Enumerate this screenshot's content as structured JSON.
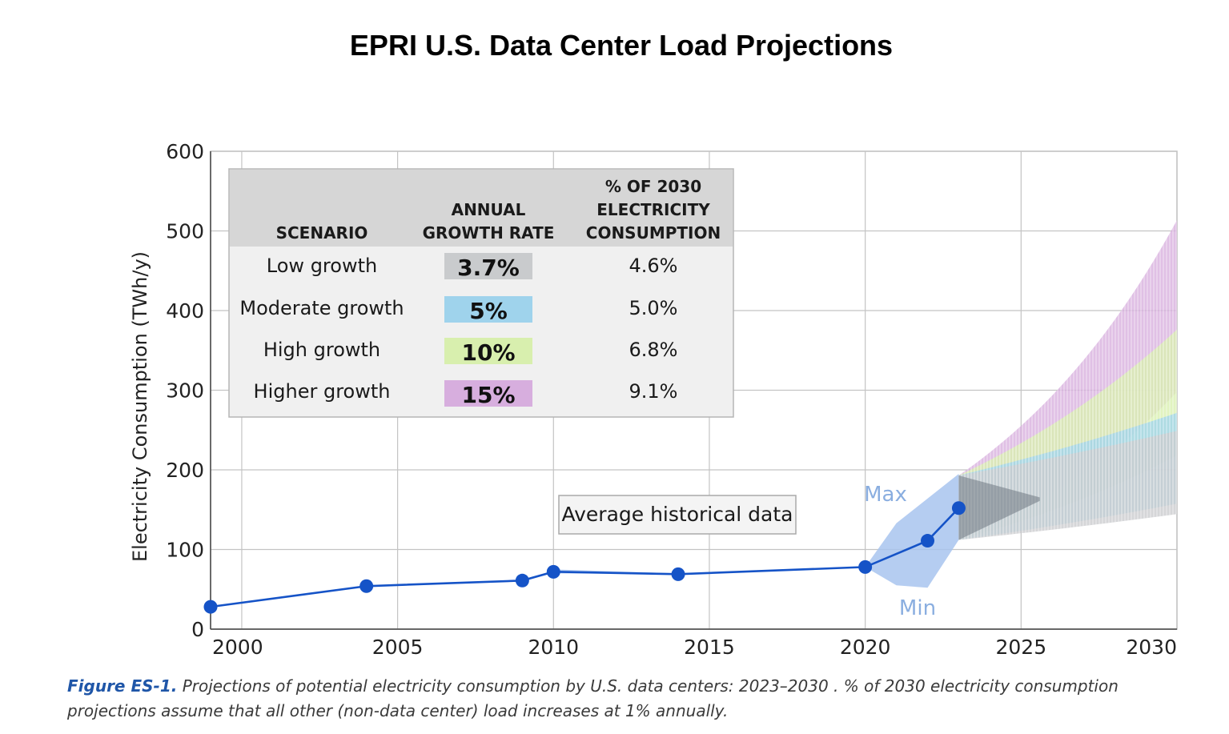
{
  "title": "EPRI U.S. Data Center Load Projections",
  "caption": {
    "figure_label": "Figure ES-1.",
    "text": " Projections of potential electricity consumption by U.S. data centers: 2023–2030 . % of 2030 electricity consumption projections assume that all other (non-data center) load increases at 1% annually."
  },
  "chart_data": {
    "type": "line",
    "title": "EPRI U.S. Data Center Load Projections",
    "xlabel": "",
    "ylabel": "Electricity Consumption (TWh/y)",
    "xlim": [
      1999,
      2030
    ],
    "ylim": [
      0,
      600
    ],
    "x_ticks": [
      "2000",
      "2005",
      "2010",
      "2015",
      "2020",
      "2025",
      "2030"
    ],
    "x_tick_values": [
      2000,
      2005,
      2010,
      2015,
      2020,
      2025,
      2030
    ],
    "y_ticks": [
      "0",
      "100",
      "200",
      "300",
      "400",
      "500",
      "600"
    ],
    "y_tick_values": [
      0,
      100,
      200,
      300,
      400,
      500,
      600
    ],
    "grid": true,
    "historical": {
      "name": "Average historical data",
      "color": "#1553c7",
      "points": [
        {
          "x": 1999,
          "y": 28
        },
        {
          "x": 2004,
          "y": 54
        },
        {
          "x": 2009,
          "y": 61
        },
        {
          "x": 2010,
          "y": 72
        },
        {
          "x": 2014,
          "y": 69
        },
        {
          "x": 2020,
          "y": 78
        },
        {
          "x": 2022,
          "y": 111
        },
        {
          "x": 2023,
          "y": 152
        }
      ]
    },
    "uncertainty_band": {
      "color": "#a8c4ef",
      "upper": [
        {
          "x": 2010,
          "y": 75
        },
        {
          "x": 2014,
          "y": 70
        },
        {
          "x": 2020,
          "y": 78
        },
        {
          "x": 2021,
          "y": 133
        },
        {
          "x": 2023,
          "y": 195
        }
      ],
      "lower": [
        {
          "x": 2010,
          "y": 70
        },
        {
          "x": 2014,
          "y": 69
        },
        {
          "x": 2020,
          "y": 78
        },
        {
          "x": 2021,
          "y": 55
        },
        {
          "x": 2022,
          "y": 52
        },
        {
          "x": 2023,
          "y": 112
        }
      ],
      "max_label": "Max",
      "min_label": "Min"
    },
    "projection_start": 2023,
    "projection_base": {
      "min": 112,
      "max": 193
    },
    "projection_end": 2030,
    "scenarios": [
      {
        "name": "Low growth",
        "annual_growth_rate": "3.7%",
        "pct_2030_consumption": "4.6%",
        "rate": 0.037,
        "color": "#c9cbcd"
      },
      {
        "name": "Moderate growth",
        "annual_growth_rate": "5%",
        "pct_2030_consumption": "5.0%",
        "rate": 0.05,
        "color": "#9fd3ec"
      },
      {
        "name": "High growth",
        "annual_growth_rate": "10%",
        "pct_2030_consumption": "6.8%",
        "rate": 0.1,
        "color": "#d8efae"
      },
      {
        "name": "Higher growth",
        "annual_growth_rate": "15%",
        "pct_2030_consumption": "9.1%",
        "rate": 0.15,
        "color": "#d7aede"
      }
    ],
    "table": {
      "col_scenario": "SCENARIO",
      "col_growth": [
        "ANNUAL",
        "GROWTH RATE"
      ],
      "col_pct": [
        "% OF 2030",
        "ELECTRICITY",
        "CONSUMPTION"
      ]
    }
  }
}
